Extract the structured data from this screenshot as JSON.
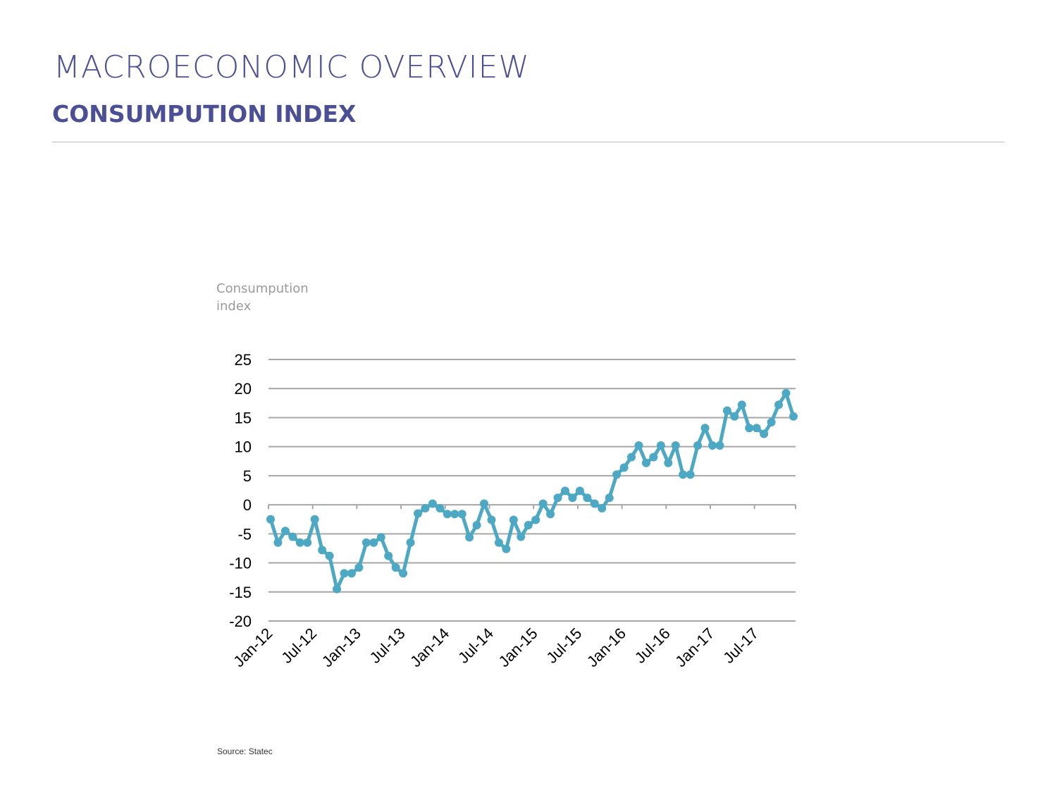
{
  "header": {
    "title": "MACROECONOMIC OVERVIEW",
    "subtitle": "CONSUMPUTION INDEX"
  },
  "colors": {
    "accent": "#4b4f95",
    "series": "#4da8c4",
    "grid": "#a6a6a6"
  },
  "chart_data": {
    "type": "line",
    "ylabel_lines": [
      "Consumpution",
      "index"
    ],
    "ylim": [
      -20,
      25
    ],
    "y_ticks": [
      25,
      20,
      15,
      10,
      5,
      0,
      -5,
      -10,
      -15,
      -20
    ],
    "x_ticks": [
      "Jan-12",
      "Jul-12",
      "Jan-13",
      "Jul-13",
      "Jan-14",
      "Jul-14",
      "Jan-15",
      "Jul-15",
      "Jan-16",
      "Jul-16",
      "Jan-17",
      "Jul-17"
    ],
    "grid": true,
    "legend": "none",
    "x_start": "Jan-12",
    "series": [
      {
        "values": [
          -2.5,
          -6.5,
          -4.5,
          -5.5,
          -6.5,
          -6.5,
          -2.5,
          -7.8,
          -8.8,
          -14.5,
          -11.8,
          -11.8,
          -10.8,
          -6.5,
          -6.5,
          -5.6,
          -8.8,
          -10.8,
          -11.8,
          -6.5,
          -1.5,
          -0.6,
          0.2,
          -0.6,
          -1.6,
          -1.6,
          -1.6,
          -5.6,
          -3.5,
          0.2,
          -2.6,
          -6.5,
          -7.6,
          -2.6,
          -5.5,
          -3.5,
          -2.6,
          0.2,
          -1.6,
          1.2,
          2.4,
          1.2,
          2.4,
          1.2,
          0.2,
          -0.6,
          1.2,
          5.2,
          6.4,
          8.2,
          10.2,
          7.2,
          8.2,
          10.2,
          7.2,
          10.2,
          5.2,
          5.2,
          10.2,
          13.2,
          10.2,
          10.2,
          16.2,
          15.2,
          17.2,
          13.2,
          13.2,
          12.2,
          14.2,
          17.2,
          19.2,
          15.2
        ]
      }
    ]
  },
  "source": "Source: Statec"
}
